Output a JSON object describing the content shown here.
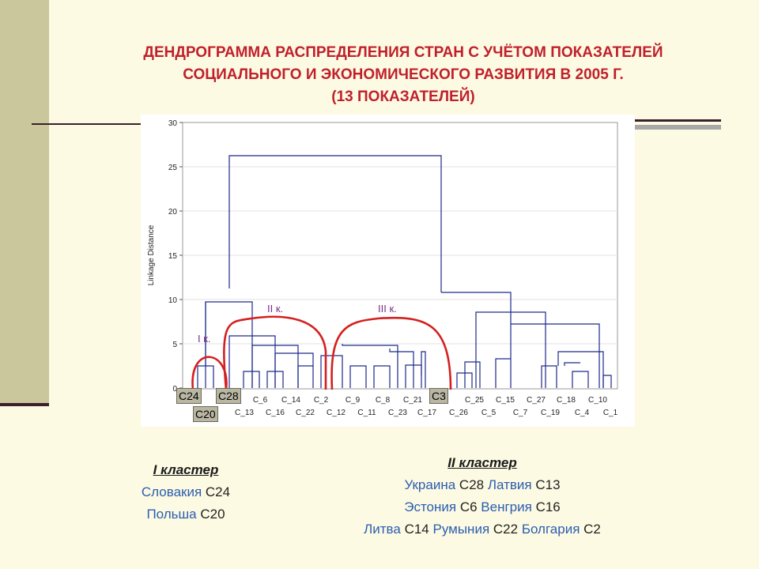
{
  "title": {
    "line1": "ДЕНДРОГРАММА РАСПРЕДЕЛЕНИЯ СТРАН С УЧЁТОМ ПОКАЗАТЕЛЕЙ",
    "line2": "СОЦИАЛЬНОГО И ЭКОНОМИЧЕСКОГО РАЗВИТИЯ В 2005 Г.",
    "line3": "(13 ПОКАЗАТЕЛЕЙ)"
  },
  "chart": {
    "ylabel": "Linkage Distance",
    "yticks": [
      "0",
      "5",
      "10",
      "15",
      "20",
      "25",
      "30"
    ],
    "leaves_row1": [
      "C_6",
      "C_14",
      "C_2",
      "C_9",
      "C_8",
      "C_21",
      "C_25",
      "C_15",
      "C_27",
      "C_18",
      "C_10"
    ],
    "leaves_row2": [
      "C_13",
      "C_16",
      "C_22",
      "C_12",
      "C_11",
      "C_23",
      "C_17",
      "C_26",
      "C_5",
      "C_7",
      "C_19",
      "C_4",
      "C_1"
    ],
    "annotations": {
      "k1": "I к.",
      "k2": "II к.",
      "k3": "III к."
    }
  },
  "tags": {
    "c24": "C24",
    "c28": "C28",
    "c20": "C20",
    "c3": "C3"
  },
  "cluster1": {
    "heading": "I кластер",
    "rows": [
      {
        "country": "Словакия",
        "code": "C24"
      },
      {
        "country": "Польша",
        "code": "C20"
      }
    ]
  },
  "cluster2": {
    "heading": "II кластер",
    "row1": {
      "c1": "Украина",
      "k1": "C28",
      "c2": "Латвия",
      "k2": "C13"
    },
    "row2": {
      "c1": "Эстония",
      "k1": "C6",
      "c2": "Венгрия",
      "k2": "C16"
    },
    "row3": {
      "c1": "Литва",
      "k1": "C14",
      "c2": "Румыния",
      "k2": "C22",
      "c3": "Болгария",
      "k3": "C2"
    }
  },
  "colors": {
    "title": "#c0202b",
    "tree": "#1d2a8a",
    "arc": "#d42020",
    "country": "#2a5db0"
  }
}
